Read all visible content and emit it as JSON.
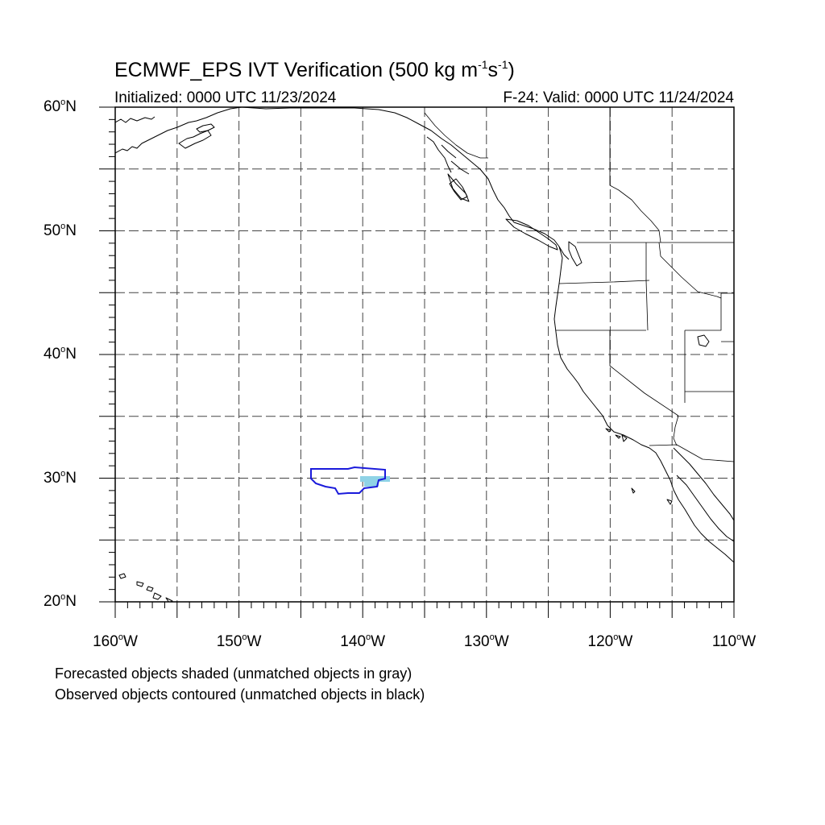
{
  "title": {
    "main": "ECMWF_EPS IVT Verification (500 kg m",
    "exp1": "-1",
    "mid": "s",
    "exp2": "-1",
    "end": ")"
  },
  "initialized": "Initialized: 0000 UTC 11/23/2024",
  "valid": "F-24: Valid: 0000 UTC 11/24/2024",
  "map": {
    "lon_range": [
      -160,
      -110
    ],
    "lat_range": [
      20,
      60
    ],
    "grid_step_deg": 5,
    "degree_symbol": "o",
    "lat_labels": [
      {
        "lat": 60,
        "num": "60",
        "hemi": "N"
      },
      {
        "lat": 50,
        "num": "50",
        "hemi": "N"
      },
      {
        "lat": 40,
        "num": "40",
        "hemi": "N"
      },
      {
        "lat": 30,
        "num": "30",
        "hemi": "N"
      },
      {
        "lat": 20,
        "num": "20",
        "hemi": "N"
      }
    ],
    "lon_labels": [
      {
        "lon": -160,
        "num": "160",
        "hemi": "W"
      },
      {
        "lon": -150,
        "num": "150",
        "hemi": "W"
      },
      {
        "lon": -140,
        "num": "140",
        "hemi": "W"
      },
      {
        "lon": -130,
        "num": "130",
        "hemi": "W"
      },
      {
        "lon": -120,
        "num": "120",
        "hemi": "W"
      },
      {
        "lon": -110,
        "num": "110",
        "hemi": "W"
      }
    ],
    "colors": {
      "observed_contour": "#1a1adb",
      "forecast_shade": "#8fd3e6",
      "coast": "#000000",
      "grid": "#444444"
    }
  },
  "captions": {
    "forecast": "Forecasted objects shaded (unmatched objects in gray)",
    "observed": "Observed objects contoured (unmatched objects in black)"
  }
}
